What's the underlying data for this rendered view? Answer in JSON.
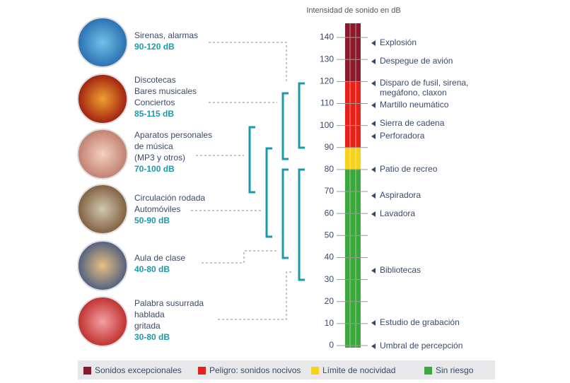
{
  "axis_title": "Intensidad de sonido en dB",
  "ticks": [
    0,
    10,
    20,
    30,
    40,
    50,
    60,
    70,
    80,
    90,
    100,
    110,
    120,
    130,
    140
  ],
  "sources": [
    {
      "lines": [
        "Sirenas, alarmas"
      ],
      "range": "90-120 dB"
    },
    {
      "lines": [
        "Discotecas",
        "Bares musicales",
        "Conciertos"
      ],
      "range": "85-115 dB"
    },
    {
      "lines": [
        "Aparatos personales",
        "de música",
        "(MP3 y otros)"
      ],
      "range": "70-100 dB"
    },
    {
      "lines": [
        "Circulación rodada",
        "Automóviles"
      ],
      "range": "50-90 dB"
    },
    {
      "lines": [
        "Aula de clase"
      ],
      "range": "40-80 dB"
    },
    {
      "lines": [
        "Palabra susurrada",
        "hablada",
        "gritada"
      ],
      "range": "30-80 dB"
    }
  ],
  "examples": [
    [
      "Explosión"
    ],
    [
      "Despegue de avión"
    ],
    [
      "Disparo de fusil, sirena,",
      "megáfono, claxon"
    ],
    [
      "Martillo neumático"
    ],
    [
      "Sierra de cadena"
    ],
    [
      "Perforadora"
    ],
    [
      "Patio de recreo"
    ],
    [
      "Aspiradora"
    ],
    [
      "Lavadora"
    ],
    [
      "Bibliotecas"
    ],
    [
      "Estudio de grabación"
    ],
    [
      "Umbral de percepción"
    ]
  ],
  "legend": [
    "Sonidos excepcionales",
    "Peligro: sonidos nocivos",
    "Límite de nocividad",
    "Sin riesgo"
  ]
}
